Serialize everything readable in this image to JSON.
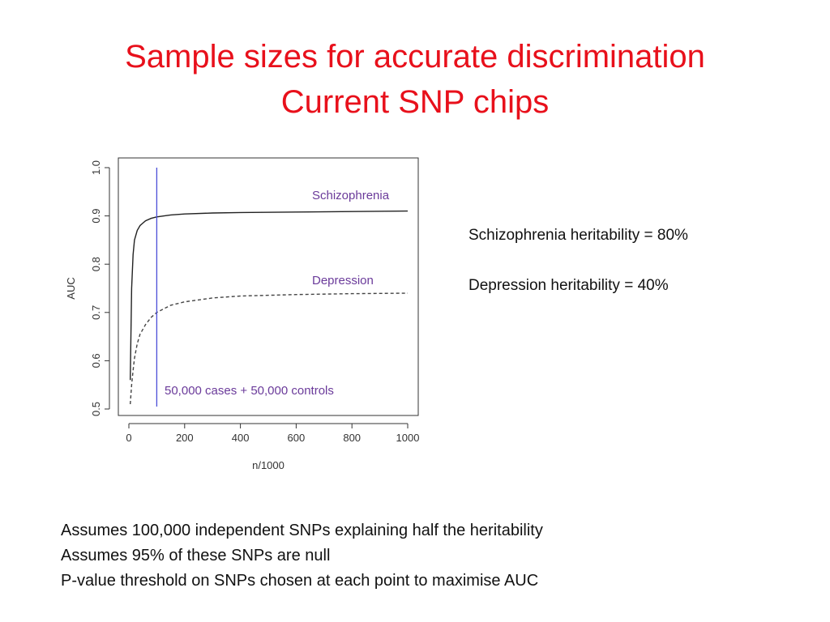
{
  "slide": {
    "title_line1": "Sample sizes for accurate discrimination",
    "title_line2": "Current SNP chips",
    "note_schizophrenia": "Schizophrenia heritability = 80%",
    "note_depression": "Depression heritability = 40%",
    "assumptions": [
      "Assumes 100,000 independent SNPs explaining half the heritability",
      "Assumes 95% of these SNPs are null",
      "P-value threshold on SNPs chosen at each point to maximise AUC"
    ]
  },
  "chart_data": {
    "type": "line",
    "xlabel": "n/1000",
    "ylabel": "AUC",
    "xlim": [
      0,
      1000
    ],
    "ylim": [
      0.5,
      1.0
    ],
    "xticks": [
      "0",
      "200",
      "400",
      "600",
      "800",
      "1000"
    ],
    "yticks": [
      "0.5",
      "0.6",
      "0.7",
      "0.8",
      "0.9",
      "1.0"
    ],
    "series": [
      {
        "name": "Schizophrenia",
        "style": "solid",
        "color": "#222222",
        "x": [
          5,
          10,
          15,
          20,
          30,
          40,
          50,
          60,
          80,
          100,
          150,
          200,
          300,
          400,
          600,
          800,
          1000
        ],
        "y": [
          0.56,
          0.75,
          0.82,
          0.85,
          0.87,
          0.88,
          0.885,
          0.89,
          0.895,
          0.898,
          0.902,
          0.904,
          0.906,
          0.907,
          0.908,
          0.909,
          0.91
        ]
      },
      {
        "name": "Depression",
        "style": "dashed",
        "color": "#444444",
        "x": [
          5,
          10,
          15,
          20,
          30,
          40,
          50,
          60,
          80,
          100,
          150,
          200,
          300,
          400,
          600,
          800,
          1000
        ],
        "y": [
          0.51,
          0.55,
          0.58,
          0.605,
          0.635,
          0.655,
          0.665,
          0.675,
          0.69,
          0.7,
          0.715,
          0.722,
          0.73,
          0.734,
          0.737,
          0.739,
          0.74
        ]
      }
    ],
    "reference_line": {
      "x": 100,
      "color": "#4a4ed8",
      "label": "50,000 cases + 50,000 controls"
    },
    "annotation_color": "#6a3a9a"
  }
}
